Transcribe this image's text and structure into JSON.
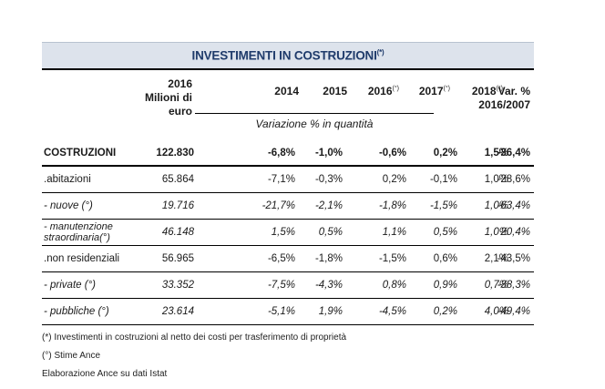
{
  "title": "INVESTIMENTI IN COSTRUZIONI",
  "title_note": "(*)",
  "header": {
    "base_col": "2016\nMilioni di\neuro",
    "years": [
      {
        "label": "2014",
        "note": ""
      },
      {
        "label": "2015",
        "note": ""
      },
      {
        "label": "2016",
        "note": "(°)"
      },
      {
        "label": "2017",
        "note": "(°)"
      },
      {
        "label": "2018",
        "note": "(°)"
      }
    ],
    "var_col": "Var. %\n2016/2007",
    "var_subtitle": "Variazione % in quantità"
  },
  "rows": [
    {
      "label": "COSTRUZIONI",
      "style": "main",
      "values": [
        "122.830",
        "-6,8%",
        "-1,0%",
        "-0,6%",
        "0,2%",
        "1,5%",
        "-36,4%"
      ]
    },
    {
      "label": ".abitazioni",
      "style": "normal",
      "values": [
        "65.864",
        "-7,1%",
        "-0,3%",
        "0,2%",
        "-0,1%",
        "1,0%",
        "-28,6%"
      ]
    },
    {
      "label": " - nuove (°)",
      "style": "italic",
      "values": [
        "19.716",
        "-21,7%",
        "-2,1%",
        "-1,8%",
        "-1,5%",
        "1,0%",
        "-63,4%"
      ]
    },
    {
      "label": " - manutenzione\nstraordinaria(°)",
      "style": "italic",
      "values": [
        "46.148",
        "1,5%",
        "0,5%",
        "1,1%",
        "0,5%",
        "1,0%",
        "20,4%"
      ]
    },
    {
      "label": ".non residenziali",
      "style": "normal",
      "values": [
        "56.965",
        "-6,5%",
        "-1,8%",
        "-1,5%",
        "0,6%",
        "2,1%",
        "-43,5%"
      ]
    },
    {
      "label": " - private (°)",
      "style": "italic",
      "values": [
        "33.352",
        "-7,5%",
        "-4,3%",
        "0,8%",
        "0,9%",
        "0,7%",
        "-38,3%"
      ]
    },
    {
      "label": " - pubbliche (°)",
      "style": "italic",
      "values": [
        "23.614",
        "-5,1%",
        "1,9%",
        "-4,5%",
        "0,2%",
        "4,0%",
        "-49,4%"
      ]
    }
  ],
  "notes": [
    "(*) Investimenti in costruzioni al netto dei costi per trasferimento di proprietà",
    "(°) Stime Ance",
    "Elaborazione Ance su dati Istat"
  ]
}
